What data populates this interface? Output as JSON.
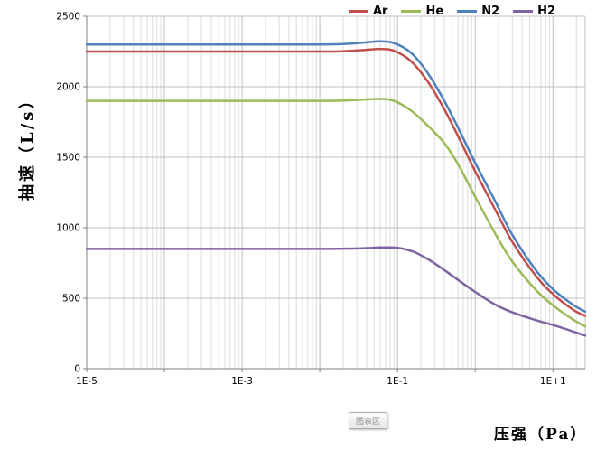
{
  "chart_data": {
    "type": "line",
    "title": "",
    "xlabel": "压强（Pa）",
    "ylabel": "抽速（L/s）",
    "x_scale": "log",
    "xlim": [
      1e-05,
      26
    ],
    "ylim": [
      0,
      2500
    ],
    "x_ticks": [
      {
        "value": 1e-05,
        "label": "1E-5"
      },
      {
        "value": 0.001,
        "label": "1E-3"
      },
      {
        "value": 0.1,
        "label": "1E-1"
      },
      {
        "value": 10.0,
        "label": "1E+1"
      }
    ],
    "y_ticks": [
      0,
      500,
      1000,
      1500,
      2000,
      2500
    ],
    "grid": {
      "horizontal_major": true,
      "vertical_log_minor": true
    },
    "legend_position": "top-right",
    "series": [
      {
        "name": "Ar",
        "color": "#C0504D",
        "points": [
          [
            1e-05,
            2250
          ],
          [
            0.001,
            2250
          ],
          [
            0.01,
            2250
          ],
          [
            0.02,
            2252
          ],
          [
            0.04,
            2262
          ],
          [
            0.06,
            2268
          ],
          [
            0.09,
            2255
          ],
          [
            0.15,
            2180
          ],
          [
            0.25,
            2030
          ],
          [
            0.4,
            1840
          ],
          [
            0.6,
            1650
          ],
          [
            1,
            1400
          ],
          [
            1.8,
            1130
          ],
          [
            3,
            900
          ],
          [
            6,
            660
          ],
          [
            10.0,
            530
          ],
          [
            18.0,
            420
          ],
          [
            26.0,
            375
          ]
        ]
      },
      {
        "name": "He",
        "color": "#9BBB59",
        "points": [
          [
            1e-05,
            1900
          ],
          [
            0.001,
            1900
          ],
          [
            0.01,
            1900
          ],
          [
            0.02,
            1902
          ],
          [
            0.04,
            1910
          ],
          [
            0.06,
            1913
          ],
          [
            0.09,
            1900
          ],
          [
            0.15,
            1830
          ],
          [
            0.25,
            1720
          ],
          [
            0.4,
            1600
          ],
          [
            0.6,
            1450
          ],
          [
            1,
            1220
          ],
          [
            1.8,
            960
          ],
          [
            3,
            760
          ],
          [
            6,
            560
          ],
          [
            10.0,
            450
          ],
          [
            18.0,
            350
          ],
          [
            26.0,
            300
          ]
        ]
      },
      {
        "name": "N2",
        "color": "#4F81BD",
        "points": [
          [
            1e-05,
            2300
          ],
          [
            0.001,
            2300
          ],
          [
            0.01,
            2300
          ],
          [
            0.02,
            2303
          ],
          [
            0.04,
            2315
          ],
          [
            0.06,
            2322
          ],
          [
            0.09,
            2310
          ],
          [
            0.15,
            2240
          ],
          [
            0.25,
            2090
          ],
          [
            0.4,
            1900
          ],
          [
            0.6,
            1710
          ],
          [
            1,
            1460
          ],
          [
            1.8,
            1190
          ],
          [
            3,
            950
          ],
          [
            6,
            700
          ],
          [
            10.0,
            565
          ],
          [
            18.0,
            455
          ],
          [
            26.0,
            405
          ]
        ]
      },
      {
        "name": "H2",
        "color": "#8064A2",
        "points": [
          [
            1e-05,
            850
          ],
          [
            0.001,
            850
          ],
          [
            0.01,
            850
          ],
          [
            0.03,
            853
          ],
          [
            0.06,
            860
          ],
          [
            0.1,
            858
          ],
          [
            0.16,
            830
          ],
          [
            0.25,
            775
          ],
          [
            0.4,
            700
          ],
          [
            0.6,
            630
          ],
          [
            1,
            545
          ],
          [
            1.8,
            455
          ],
          [
            3,
            400
          ],
          [
            6,
            345
          ],
          [
            10.0,
            310
          ],
          [
            18.0,
            265
          ],
          [
            26.0,
            235
          ]
        ]
      }
    ]
  },
  "tooltip": {
    "label": "图表区"
  }
}
